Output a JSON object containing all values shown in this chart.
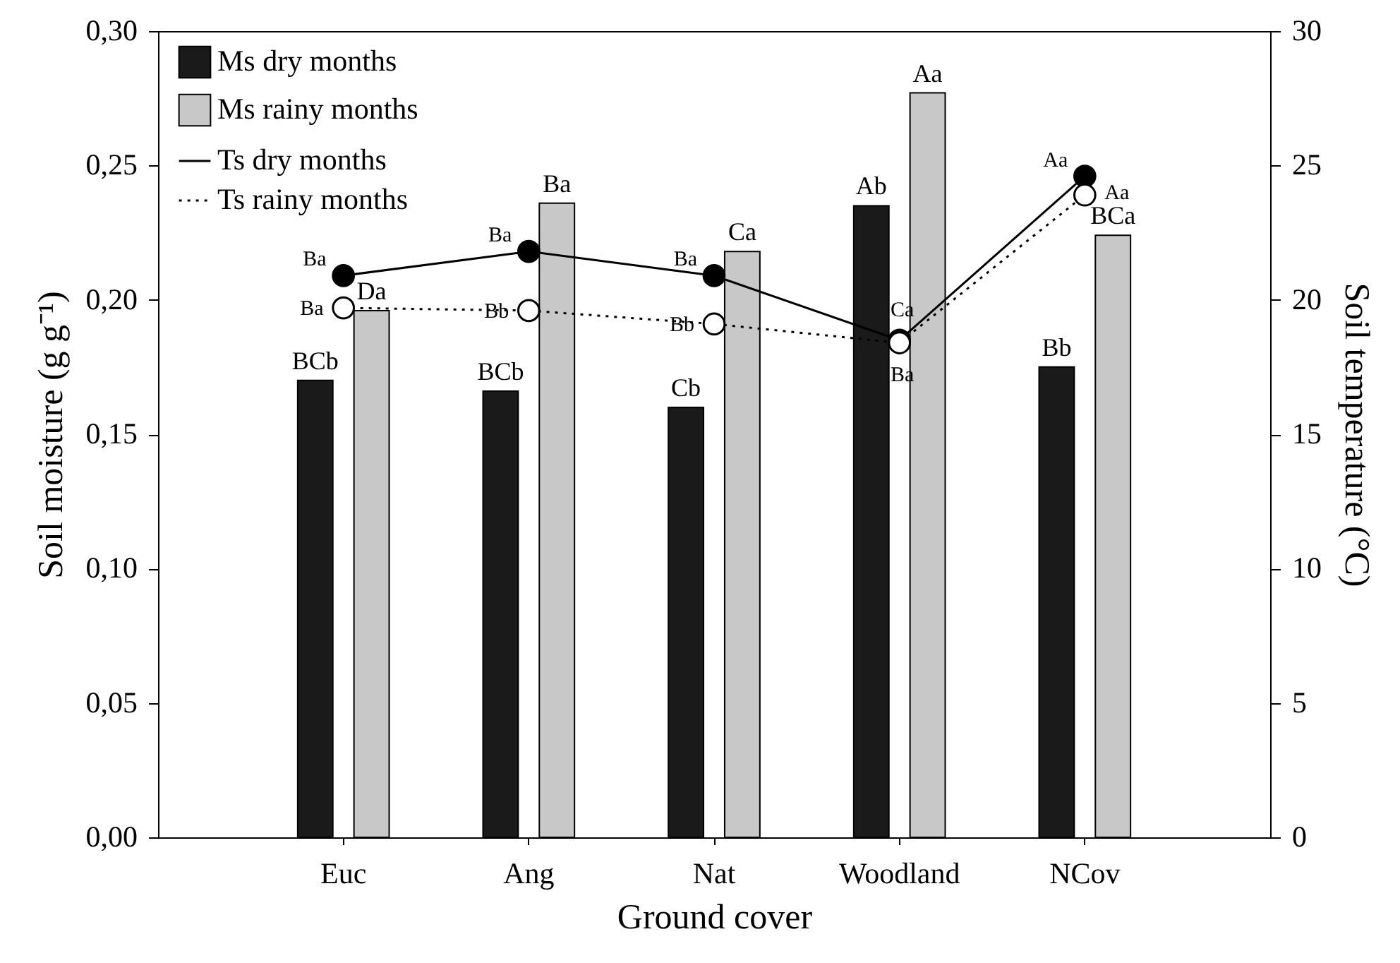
{
  "chart_data": {
    "type": "bar",
    "xlabel": "Ground cover",
    "ylabel": "Soil moisture (g g⁻¹)",
    "y2label": "Soil temperature (°C)",
    "categories": [
      "Euc",
      "Ang",
      "Nat",
      "Woodland",
      "NCov"
    ],
    "ylim": [
      0,
      0.3
    ],
    "yticks": [
      {
        "value": 0,
        "label": "0,00"
      },
      {
        "value": 0.05,
        "label": "0,05"
      },
      {
        "value": 0.1,
        "label": "0,10"
      },
      {
        "value": 0.15,
        "label": "0,15"
      },
      {
        "value": 0.2,
        "label": "0,20"
      },
      {
        "value": 0.25,
        "label": "0,25"
      },
      {
        "value": 0.3,
        "label": "0,30"
      }
    ],
    "y2lim": [
      0,
      30
    ],
    "y2ticks": [
      0,
      5,
      10,
      15,
      20,
      25,
      30
    ],
    "grid": false,
    "legend": "top left",
    "series": [
      {
        "name": "Ms dry months",
        "color": "#1a1a1a",
        "values": [
          0.17,
          0.166,
          0.16,
          0.235,
          0.175
        ],
        "value_labels": [
          "BCb",
          "BCb",
          "Cb",
          "Ab",
          "Bb"
        ]
      },
      {
        "name": "Ms rainy months",
        "color": "#c8c8c8",
        "values": [
          0.196,
          0.236,
          0.218,
          0.277,
          0.224
        ],
        "value_labels": [
          "Da",
          "Ba",
          "Ca",
          "Aa",
          "BCa"
        ]
      },
      {
        "name": "Ts dry months",
        "type": "line",
        "axis": "y2",
        "color": "#000000",
        "marker": "circle",
        "line_style": "solid",
        "values": [
          20.9,
          21.8,
          20.9,
          18.5,
          24.6
        ],
        "value_labels": [
          "Ba",
          "Ba",
          "Ba",
          "Ca",
          "Aa"
        ]
      },
      {
        "name": "Ts rainy months",
        "type": "line",
        "axis": "y2",
        "color": "#000000",
        "marker": "circle",
        "line_style": "dotted",
        "values": [
          19.7,
          19.6,
          19.1,
          18.4,
          23.9
        ],
        "value_labels": [
          "Ba",
          "Bb",
          "Bb",
          "Ba",
          "Aa"
        ]
      }
    ]
  }
}
